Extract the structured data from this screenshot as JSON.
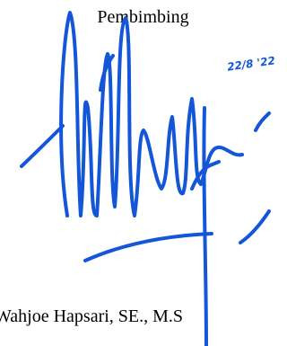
{
  "heading": "Pembimbing",
  "signature_date": "22/8 '22",
  "name": "Wahjoe Hapsari, SE., M.S"
}
